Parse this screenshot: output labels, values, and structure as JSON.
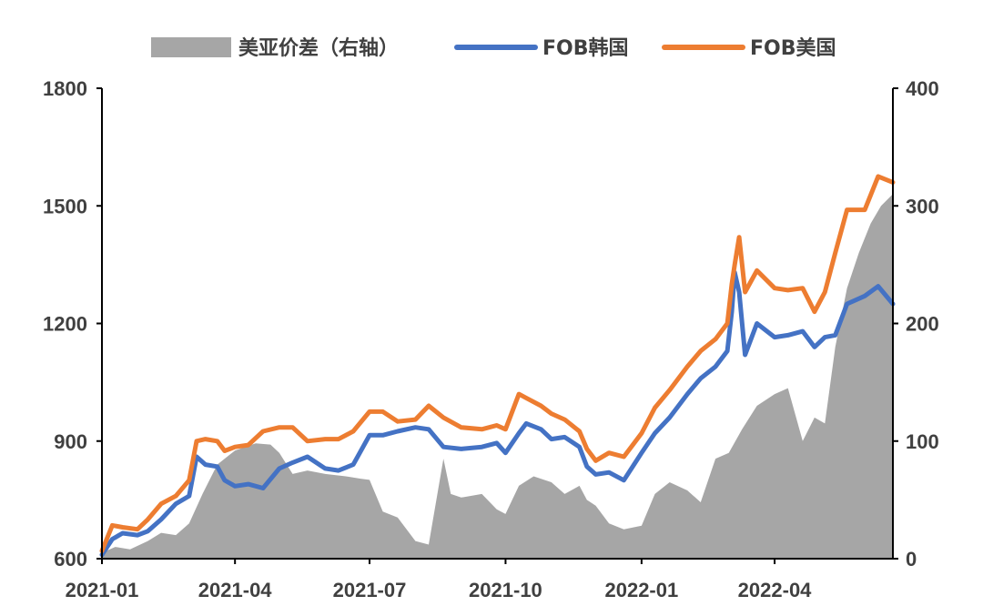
{
  "chart_data": {
    "type": "line",
    "x_tick_labels": [
      "2021-01",
      "2021-04",
      "2021-07",
      "2021-10",
      "2022-01",
      "2022-04"
    ],
    "x_ticks": [
      "2021-01-01",
      "2021-04-01",
      "2021-07-01",
      "2021-10-01",
      "2022-01-01",
      "2022-04-01"
    ],
    "x_range": [
      "2021-01-01",
      "2022-06-20"
    ],
    "y_left": {
      "ticks": [
        "600",
        "900",
        "1200",
        "1500",
        "1800"
      ],
      "lim": [
        600,
        1800
      ]
    },
    "y_right": {
      "ticks": [
        "0",
        "100",
        "200",
        "300",
        "400"
      ],
      "lim": [
        0,
        400
      ]
    },
    "legend_position": "top",
    "grid": false,
    "series": [
      {
        "name": "美亚价差（右轴）",
        "kind": "area",
        "axis": "right",
        "color": "#a6a6a6",
        "points": [
          [
            "2021-01-01",
            5
          ],
          [
            "2021-01-10",
            10
          ],
          [
            "2021-01-20",
            8
          ],
          [
            "2021-02-01",
            15
          ],
          [
            "2021-02-10",
            22
          ],
          [
            "2021-02-20",
            20
          ],
          [
            "2021-03-01",
            30
          ],
          [
            "2021-03-10",
            55
          ],
          [
            "2021-03-20",
            80
          ],
          [
            "2021-04-01",
            92
          ],
          [
            "2021-04-15",
            98
          ],
          [
            "2021-04-25",
            97
          ],
          [
            "2021-05-01",
            90
          ],
          [
            "2021-05-10",
            72
          ],
          [
            "2021-05-20",
            75
          ],
          [
            "2021-06-01",
            72
          ],
          [
            "2021-06-15",
            70
          ],
          [
            "2021-06-25",
            68
          ],
          [
            "2021-07-01",
            67
          ],
          [
            "2021-07-10",
            40
          ],
          [
            "2021-07-20",
            35
          ],
          [
            "2021-08-01",
            15
          ],
          [
            "2021-08-10",
            12
          ],
          [
            "2021-08-20",
            85
          ],
          [
            "2021-08-25",
            55
          ],
          [
            "2021-09-01",
            52
          ],
          [
            "2021-09-15",
            55
          ],
          [
            "2021-09-25",
            42
          ],
          [
            "2021-10-01",
            38
          ],
          [
            "2021-10-10",
            62
          ],
          [
            "2021-10-20",
            70
          ],
          [
            "2021-11-01",
            65
          ],
          [
            "2021-11-10",
            55
          ],
          [
            "2021-11-20",
            62
          ],
          [
            "2021-11-25",
            50
          ],
          [
            "2021-12-01",
            45
          ],
          [
            "2021-12-10",
            30
          ],
          [
            "2021-12-20",
            25
          ],
          [
            "2022-01-01",
            28
          ],
          [
            "2022-01-10",
            55
          ],
          [
            "2022-01-20",
            65
          ],
          [
            "2022-02-01",
            58
          ],
          [
            "2022-02-10",
            48
          ],
          [
            "2022-02-20",
            85
          ],
          [
            "2022-03-01",
            90
          ],
          [
            "2022-03-10",
            110
          ],
          [
            "2022-03-20",
            130
          ],
          [
            "2022-04-01",
            140
          ],
          [
            "2022-04-10",
            145
          ],
          [
            "2022-04-20",
            100
          ],
          [
            "2022-04-28",
            120
          ],
          [
            "2022-05-05",
            115
          ],
          [
            "2022-05-12",
            180
          ],
          [
            "2022-05-20",
            230
          ],
          [
            "2022-05-28",
            260
          ],
          [
            "2022-06-05",
            285
          ],
          [
            "2022-06-12",
            300
          ],
          [
            "2022-06-20",
            310
          ]
        ]
      },
      {
        "name": "FOB韩国",
        "kind": "line",
        "axis": "left",
        "color": "#4472c4",
        "points": [
          [
            "2021-01-01",
            610
          ],
          [
            "2021-01-08",
            650
          ],
          [
            "2021-01-15",
            665
          ],
          [
            "2021-01-25",
            660
          ],
          [
            "2021-02-01",
            670
          ],
          [
            "2021-02-10",
            700
          ],
          [
            "2021-02-20",
            740
          ],
          [
            "2021-03-01",
            760
          ],
          [
            "2021-03-06",
            860
          ],
          [
            "2021-03-12",
            840
          ],
          [
            "2021-03-20",
            835
          ],
          [
            "2021-03-25",
            800
          ],
          [
            "2021-04-01",
            785
          ],
          [
            "2021-04-10",
            790
          ],
          [
            "2021-04-20",
            780
          ],
          [
            "2021-05-01",
            830
          ],
          [
            "2021-05-10",
            845
          ],
          [
            "2021-05-20",
            860
          ],
          [
            "2021-06-01",
            830
          ],
          [
            "2021-06-10",
            825
          ],
          [
            "2021-06-20",
            840
          ],
          [
            "2021-07-01",
            915
          ],
          [
            "2021-07-10",
            915
          ],
          [
            "2021-07-20",
            925
          ],
          [
            "2021-08-01",
            935
          ],
          [
            "2021-08-10",
            930
          ],
          [
            "2021-08-20",
            885
          ],
          [
            "2021-09-01",
            880
          ],
          [
            "2021-09-15",
            885
          ],
          [
            "2021-09-25",
            895
          ],
          [
            "2021-10-01",
            870
          ],
          [
            "2021-10-10",
            920
          ],
          [
            "2021-10-15",
            945
          ],
          [
            "2021-10-25",
            930
          ],
          [
            "2021-11-01",
            905
          ],
          [
            "2021-11-10",
            910
          ],
          [
            "2021-11-20",
            885
          ],
          [
            "2021-11-25",
            835
          ],
          [
            "2021-12-01",
            815
          ],
          [
            "2021-12-10",
            820
          ],
          [
            "2021-12-20",
            800
          ],
          [
            "2022-01-01",
            870
          ],
          [
            "2022-01-10",
            920
          ],
          [
            "2022-01-20",
            960
          ],
          [
            "2022-02-01",
            1020
          ],
          [
            "2022-02-10",
            1060
          ],
          [
            "2022-02-20",
            1090
          ],
          [
            "2022-02-28",
            1130
          ],
          [
            "2022-03-03",
            1230
          ],
          [
            "2022-03-05",
            1330
          ],
          [
            "2022-03-08",
            1280
          ],
          [
            "2022-03-12",
            1120
          ],
          [
            "2022-03-20",
            1200
          ],
          [
            "2022-04-01",
            1165
          ],
          [
            "2022-04-10",
            1170
          ],
          [
            "2022-04-20",
            1180
          ],
          [
            "2022-04-28",
            1140
          ],
          [
            "2022-05-05",
            1165
          ],
          [
            "2022-05-12",
            1170
          ],
          [
            "2022-05-20",
            1250
          ],
          [
            "2022-06-01",
            1270
          ],
          [
            "2022-06-10",
            1295
          ],
          [
            "2022-06-20",
            1250
          ]
        ]
      },
      {
        "name": "FOB美国",
        "kind": "line",
        "axis": "left",
        "color": "#ed7d31",
        "points": [
          [
            "2021-01-01",
            620
          ],
          [
            "2021-01-08",
            685
          ],
          [
            "2021-01-15",
            680
          ],
          [
            "2021-01-25",
            675
          ],
          [
            "2021-02-01",
            700
          ],
          [
            "2021-02-10",
            740
          ],
          [
            "2021-02-20",
            760
          ],
          [
            "2021-03-01",
            800
          ],
          [
            "2021-03-06",
            900
          ],
          [
            "2021-03-12",
            905
          ],
          [
            "2021-03-20",
            900
          ],
          [
            "2021-03-25",
            875
          ],
          [
            "2021-04-01",
            885
          ],
          [
            "2021-04-10",
            890
          ],
          [
            "2021-04-20",
            925
          ],
          [
            "2021-05-01",
            935
          ],
          [
            "2021-05-10",
            935
          ],
          [
            "2021-05-20",
            900
          ],
          [
            "2021-06-01",
            905
          ],
          [
            "2021-06-10",
            905
          ],
          [
            "2021-06-20",
            925
          ],
          [
            "2021-07-01",
            975
          ],
          [
            "2021-07-10",
            975
          ],
          [
            "2021-07-20",
            950
          ],
          [
            "2021-08-01",
            955
          ],
          [
            "2021-08-10",
            990
          ],
          [
            "2021-08-20",
            960
          ],
          [
            "2021-09-01",
            935
          ],
          [
            "2021-09-15",
            930
          ],
          [
            "2021-09-25",
            940
          ],
          [
            "2021-10-01",
            930
          ],
          [
            "2021-10-10",
            1020
          ],
          [
            "2021-10-15",
            1010
          ],
          [
            "2021-10-25",
            990
          ],
          [
            "2021-11-01",
            970
          ],
          [
            "2021-11-10",
            955
          ],
          [
            "2021-11-20",
            925
          ],
          [
            "2021-11-25",
            880
          ],
          [
            "2021-12-01",
            850
          ],
          [
            "2021-12-10",
            870
          ],
          [
            "2021-12-20",
            860
          ],
          [
            "2022-01-01",
            920
          ],
          [
            "2022-01-10",
            985
          ],
          [
            "2022-01-20",
            1030
          ],
          [
            "2022-02-01",
            1090
          ],
          [
            "2022-02-10",
            1130
          ],
          [
            "2022-02-20",
            1160
          ],
          [
            "2022-02-28",
            1200
          ],
          [
            "2022-03-03",
            1300
          ],
          [
            "2022-03-05",
            1350
          ],
          [
            "2022-03-08",
            1420
          ],
          [
            "2022-03-12",
            1280
          ],
          [
            "2022-03-20",
            1335
          ],
          [
            "2022-04-01",
            1290
          ],
          [
            "2022-04-10",
            1285
          ],
          [
            "2022-04-20",
            1290
          ],
          [
            "2022-04-28",
            1230
          ],
          [
            "2022-05-05",
            1280
          ],
          [
            "2022-05-12",
            1380
          ],
          [
            "2022-05-20",
            1490
          ],
          [
            "2022-06-01",
            1490
          ],
          [
            "2022-06-10",
            1575
          ],
          [
            "2022-06-20",
            1560
          ]
        ]
      }
    ]
  }
}
